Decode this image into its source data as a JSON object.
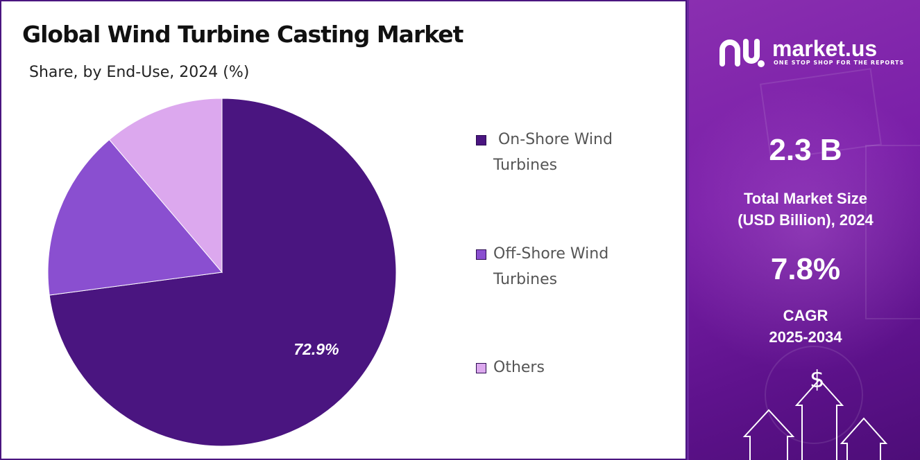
{
  "title": "Global Wind Turbine Casting Market",
  "subtitle": "Share, by End-Use, 2024 (%)",
  "chart_data": {
    "type": "pie",
    "categories": [
      "On-Shore Wind Turbines",
      "Off-Shore Wind Turbines",
      "Others"
    ],
    "values": [
      72.9,
      15.9,
      11.2
    ],
    "colors": [
      "#4a1580",
      "#8a4fd0",
      "#dca8ee"
    ],
    "data_labels": [
      "72.9%",
      "",
      ""
    ],
    "legend_position": "right"
  },
  "legend": [
    {
      "line1": " On-Shore Wind",
      "line2": "Turbines",
      "color": "#4a1580"
    },
    {
      "line1": "Off-Shore Wind",
      "line2": "Turbines",
      "color": "#8a4fd0"
    },
    {
      "line1": "Others",
      "line2": "",
      "color": "#dca8ee"
    }
  ],
  "brand": {
    "name": "market.us",
    "tagline": "ONE STOP SHOP FOR THE REPORTS"
  },
  "stats": {
    "market_size_value": "2.3 B",
    "market_size_label_1": "Total Market Size",
    "market_size_label_2": "(USD Billion), 2024",
    "cagr_value": "7.8%",
    "cagr_label_1": "CAGR",
    "cagr_label_2": "2025-2034"
  },
  "decor": {
    "currency_symbol": "$"
  }
}
